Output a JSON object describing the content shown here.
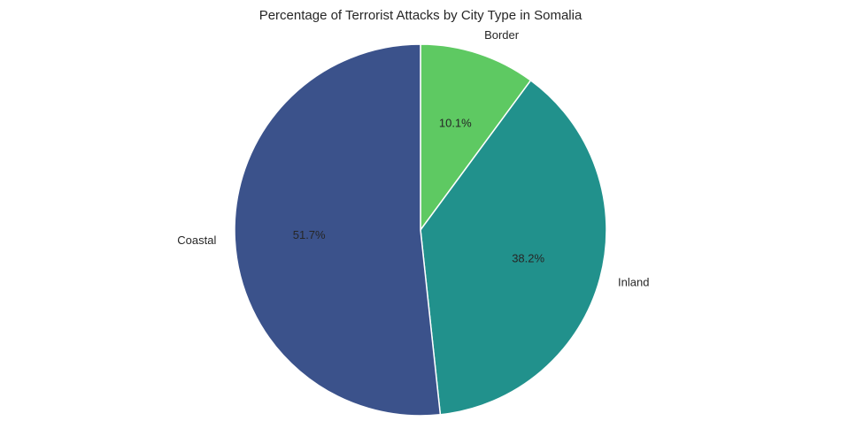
{
  "chart_data": {
    "type": "pie",
    "title": "Percentage of Terrorist Attacks by City Type in Somalia",
    "slices": [
      {
        "label": "Border",
        "value": 10.1,
        "display": "10.1%",
        "color": "#5ec962"
      },
      {
        "label": "Inland",
        "value": 38.2,
        "display": "38.2%",
        "color": "#21918c"
      },
      {
        "label": "Coastal",
        "value": 51.7,
        "display": "51.7%",
        "color": "#3b528b"
      }
    ],
    "start_angle": "top",
    "direction": "clockwise",
    "legend": "none"
  }
}
